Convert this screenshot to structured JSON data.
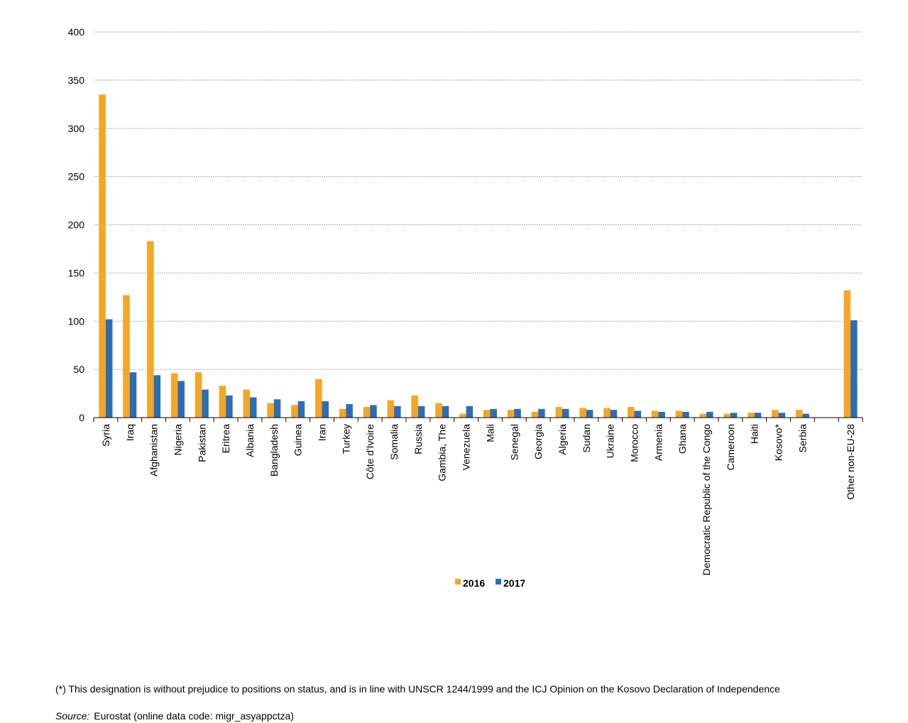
{
  "chart_data": {
    "type": "bar",
    "title": "",
    "xlabel": "",
    "ylabel": "",
    "ylim": [
      0,
      400
    ],
    "yticks": [
      0,
      50,
      100,
      150,
      200,
      250,
      300,
      350,
      400
    ],
    "grid": true,
    "legend_position": "bottom-center",
    "categories": [
      "Syria",
      "Iraq",
      "Afghanistan",
      "Nigeria",
      "Pakistan",
      "Eritrea",
      "Albania",
      "Bangladesh",
      "Guinea",
      "Iran",
      "Turkey",
      "Côte d'Ivoire",
      "Somalia",
      "Russia",
      "Gambia, The",
      "Venezuela",
      "Mali",
      "Senegal",
      "Georgia",
      "Algeria",
      "Sudan",
      "Ukraine",
      "Morocco",
      "Armenia",
      "Ghana",
      "Democratic Republic of the Congo",
      "Cameroon",
      "Haiti",
      "Kosovo*",
      "Serbia",
      "",
      "Other non-EU-28"
    ],
    "series": [
      {
        "name": "2016",
        "color": "#f5a623",
        "values": [
          335,
          127,
          183,
          46,
          47,
          33,
          29,
          15,
          13,
          40,
          9,
          11,
          18,
          23,
          15,
          4,
          8,
          8,
          6,
          11,
          10,
          10,
          11,
          7,
          7,
          4,
          4,
          5,
          8,
          8,
          null,
          132
        ]
      },
      {
        "name": "2017",
        "color": "#2e6db4",
        "values": [
          102,
          47,
          44,
          38,
          29,
          23,
          21,
          19,
          17,
          17,
          14,
          13,
          12,
          12,
          12,
          12,
          9,
          9,
          9,
          9,
          8,
          8,
          7,
          6,
          6,
          6,
          5,
          5,
          5,
          4,
          null,
          101
        ]
      }
    ]
  },
  "footnote": "(*) This designation is without prejudice to positions on status, and is in line with UNSCR 1244/1999 and the ICJ Opinion on the Kosovo Declaration of Independence",
  "source": {
    "label": "Source:",
    "text": "Eurostat (online data code: migr_asyappctza)"
  }
}
